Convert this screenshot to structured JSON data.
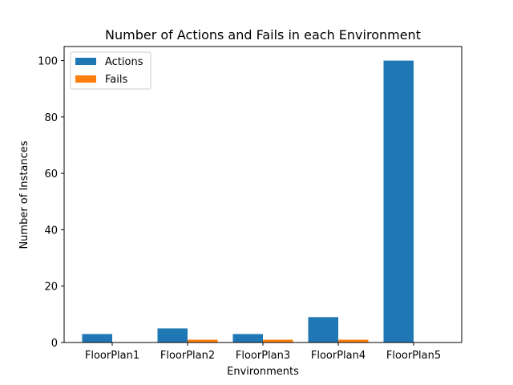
{
  "chart_data": {
    "type": "bar",
    "title": "Number of Actions and Fails in each Environment",
    "xlabel": "Environments",
    "ylabel": "Number of Instances",
    "categories": [
      "FloorPlan1",
      "FloorPlan2",
      "FloorPlan3",
      "FloorPlan4",
      "FloorPlan5"
    ],
    "series": [
      {
        "name": "Actions",
        "values": [
          3,
          5,
          3,
          9,
          100
        ],
        "color": "#1f77b4"
      },
      {
        "name": "Fails",
        "values": [
          0,
          1,
          1,
          1,
          0
        ],
        "color": "#ff7f0e"
      }
    ],
    "ylim": [
      0,
      105
    ],
    "yticks": [
      0,
      20,
      40,
      60,
      80,
      100
    ],
    "ytick_labels": [
      "0",
      "20",
      "40",
      "60",
      "80",
      "100"
    ],
    "grid": false,
    "legend": "top-left"
  }
}
